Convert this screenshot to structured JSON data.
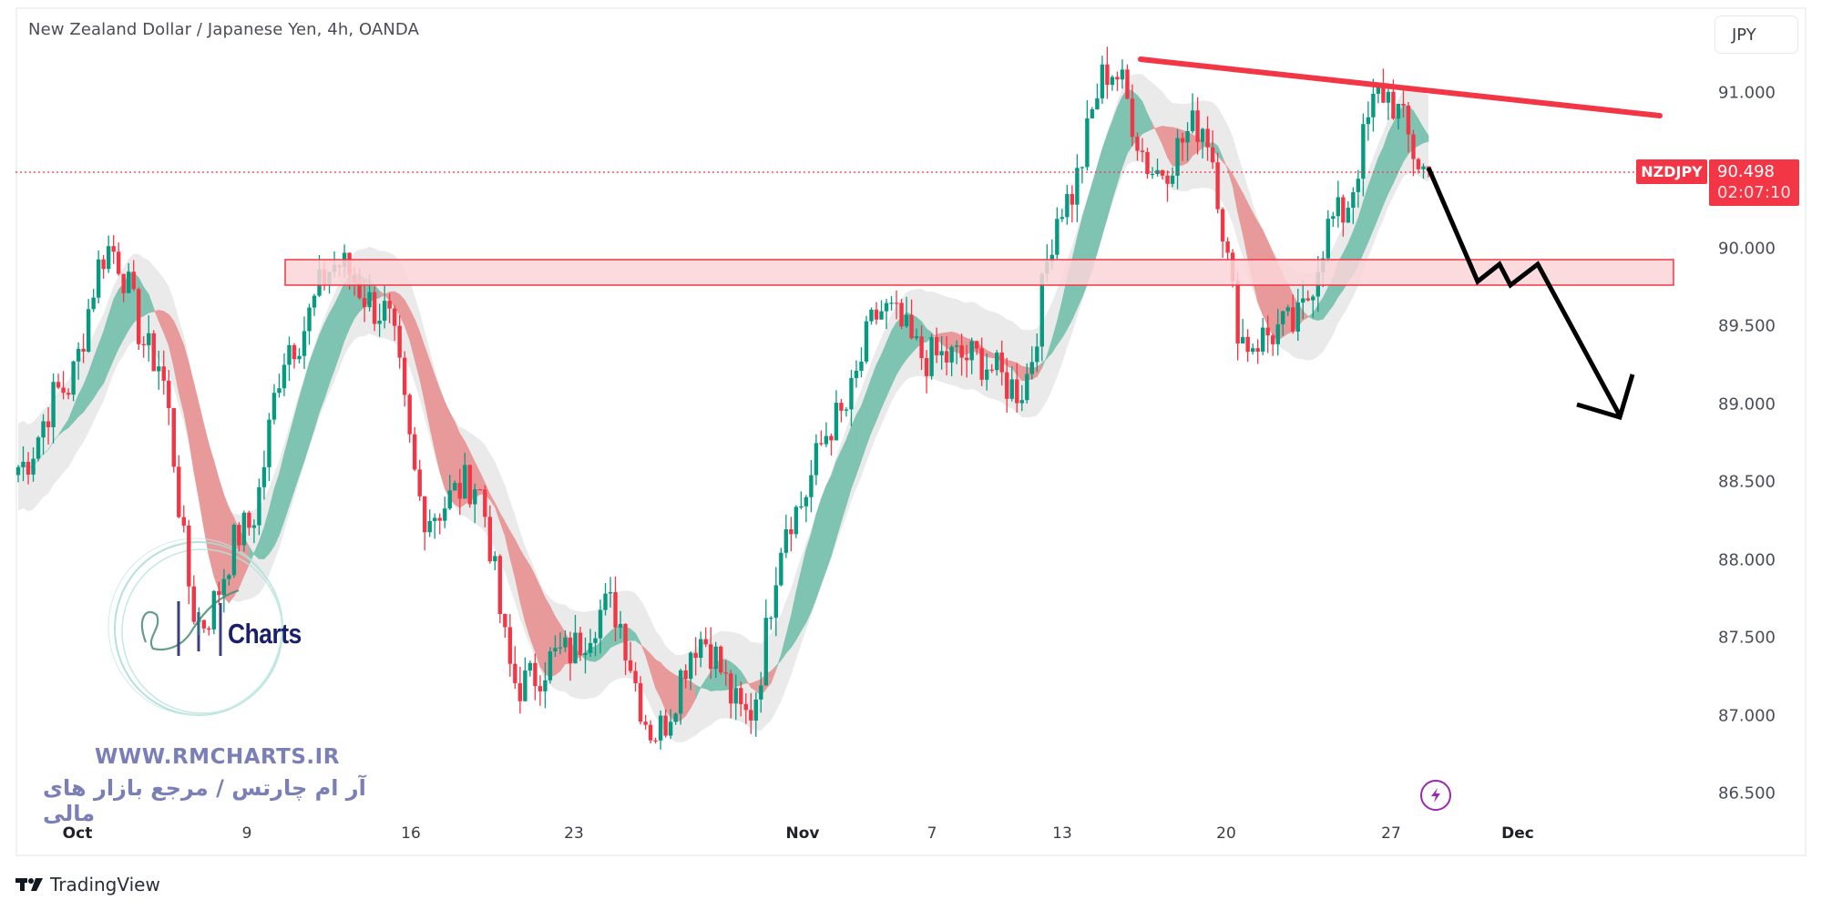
{
  "header": {
    "title": "New Zealand Dollar / Japanese Yen, 4h, OANDA",
    "currency_button": "JPY"
  },
  "price_axis": {
    "labels": [
      "91.000",
      "90.000",
      "89.500",
      "89.000",
      "88.500",
      "88.000",
      "87.500",
      "87.000",
      "86.500"
    ]
  },
  "time_axis": {
    "labels": [
      {
        "text": "Oct",
        "bold": true
      },
      {
        "text": "9",
        "bold": false
      },
      {
        "text": "16",
        "bold": false
      },
      {
        "text": "23",
        "bold": false
      },
      {
        "text": "Nov",
        "bold": true
      },
      {
        "text": "7",
        "bold": false
      },
      {
        "text": "13",
        "bold": false
      },
      {
        "text": "20",
        "bold": false
      },
      {
        "text": "27",
        "bold": false
      },
      {
        "text": "Dec",
        "bold": true
      }
    ]
  },
  "last_price": {
    "symbol": "NZDJPY",
    "price": "90.498",
    "countdown": "02:07:10",
    "color": "#f23645"
  },
  "watermark": {
    "logo_text": "Charts",
    "url": "WWW.RMCHARTS.IR",
    "tagline_fa": "آر ام چارتس / مرجع بازار های مالی"
  },
  "footer": {
    "brand_name": "TradingView"
  },
  "icons": {
    "events": "lightning-bolt-icon",
    "brand": "tradingview-logo-icon"
  },
  "colors": {
    "up": "#089981",
    "down": "#f23645",
    "ribbon_up": "#7fc3b2",
    "ribbon_down": "#e89a9a",
    "envelope": "#e6e6e6",
    "zone_fill": "#fcd5d8",
    "zone_border": "#f23645",
    "trendline": "#f23645",
    "projection": "#000000",
    "event_icon": "#9c27b0",
    "watermark": "#7b7fb8"
  },
  "chart_data": {
    "type": "candlestick",
    "title": "New Zealand Dollar / Japanese Yen, 4h, OANDA",
    "symbol": "NZDJPY",
    "timeframe": "4h",
    "xlabel": "",
    "ylabel": "JPY",
    "ylim": [
      86.35,
      91.25
    ],
    "y_ticks": [
      86.5,
      87.0,
      87.5,
      88.0,
      88.5,
      89.0,
      89.5,
      90.0,
      91.0
    ],
    "x_ticks": [
      "Oct",
      "9",
      "16",
      "23",
      "Nov",
      "7",
      "13",
      "20",
      "27",
      "Dec"
    ],
    "grid": false,
    "last_price": 90.498,
    "price_path_waypoints": [
      {
        "date": "Sep 29",
        "close": 88.6
      },
      {
        "date": "Oct 2",
        "close": 89.1
      },
      {
        "date": "Oct 4",
        "close": 90.0
      },
      {
        "date": "Oct 6",
        "close": 89.3
      },
      {
        "date": "Oct 8",
        "close": 87.6
      },
      {
        "date": "Oct 10",
        "close": 88.2
      },
      {
        "date": "Oct 12",
        "close": 89.4
      },
      {
        "date": "Oct 14",
        "close": 89.9
      },
      {
        "date": "Oct 16",
        "close": 89.6
      },
      {
        "date": "Oct 18",
        "close": 88.3
      },
      {
        "date": "Oct 20",
        "close": 88.5
      },
      {
        "date": "Oct 23",
        "close": 87.2
      },
      {
        "date": "Oct 25",
        "close": 87.4
      },
      {
        "date": "Oct 27",
        "close": 87.7
      },
      {
        "date": "Oct 28",
        "close": 86.9
      },
      {
        "date": "Oct 31",
        "close": 87.5
      },
      {
        "date": "Nov 1",
        "close": 87.0
      },
      {
        "date": "Nov 3",
        "close": 88.3
      },
      {
        "date": "Nov 6",
        "close": 88.9
      },
      {
        "date": "Nov 8",
        "close": 89.6
      },
      {
        "date": "Nov 9",
        "close": 89.3
      },
      {
        "date": "Nov 11",
        "close": 89.3
      },
      {
        "date": "Nov 13",
        "close": 89.1
      },
      {
        "date": "Nov 15",
        "close": 90.3
      },
      {
        "date": "Nov 17",
        "close": 91.15
      },
      {
        "date": "Nov 17b",
        "close": 90.5
      },
      {
        "date": "Nov 18",
        "close": 90.8
      },
      {
        "date": "Nov 20",
        "close": 89.4
      },
      {
        "date": "Nov 22",
        "close": 89.5
      },
      {
        "date": "Nov 24",
        "close": 90.2
      },
      {
        "date": "Nov 27",
        "close": 91.0
      },
      {
        "date": "Nov 28",
        "close": 90.498
      }
    ],
    "annotations": {
      "resistance_zone": {
        "from": 89.85,
        "to": 90.05,
        "x_start": "Oct 11",
        "x_end": "Dec 4"
      },
      "descending_trendline": {
        "start_price": 91.2,
        "end_price": 90.85
      },
      "projection_path_prices": [
        90.5,
        89.8,
        89.92,
        89.78,
        89.93,
        88.95
      ],
      "last_price_line": 90.498
    }
  }
}
